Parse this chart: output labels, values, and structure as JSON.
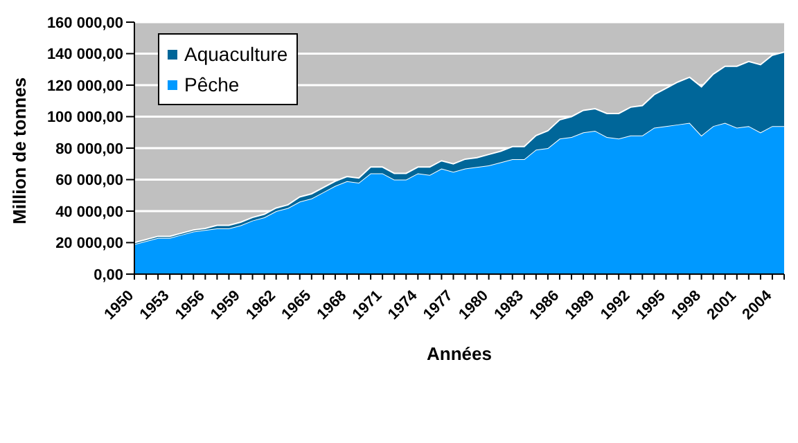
{
  "chart_data": {
    "type": "area",
    "stacked": true,
    "xlabel": "Années",
    "ylabel": "Million de tonnes",
    "categories": [
      "1950",
      null,
      null,
      "1953",
      null,
      null,
      "1956",
      null,
      null,
      "1959",
      null,
      null,
      "1962",
      null,
      null,
      "1965",
      null,
      null,
      "1968",
      null,
      null,
      "1971",
      null,
      null,
      "1974",
      null,
      null,
      "1977",
      null,
      null,
      "1980",
      null,
      null,
      "1983",
      null,
      null,
      "1986",
      null,
      null,
      "1989",
      null,
      null,
      "1992",
      null,
      null,
      "1995",
      null,
      null,
      "1998",
      null,
      null,
      "2001",
      null,
      null,
      "2004",
      null
    ],
    "series": [
      {
        "name": "Pêche",
        "color": "#0099ff",
        "values": [
          19000,
          21000,
          23000,
          23000,
          25000,
          27000,
          28000,
          29000,
          29000,
          31000,
          34000,
          36000,
          40000,
          42000,
          46000,
          48000,
          52000,
          56000,
          59000,
          58000,
          64000,
          64000,
          60000,
          60000,
          64000,
          63000,
          67000,
          65000,
          67000,
          68000,
          69000,
          71000,
          73000,
          73000,
          79000,
          80000,
          86000,
          87000,
          90000,
          91000,
          87000,
          86000,
          88000,
          88000,
          93000,
          94000,
          95000,
          96000,
          88000,
          94000,
          96000,
          93000,
          94000,
          90000,
          94000,
          94000
        ]
      },
      {
        "name": "Aquaculture",
        "color": "#006699",
        "values": [
          1000,
          1000,
          1000,
          1000,
          1000,
          1000,
          1000,
          2000,
          2000,
          2000,
          2000,
          2000,
          2000,
          2000,
          3000,
          3000,
          3000,
          3000,
          3000,
          3000,
          4000,
          4000,
          4000,
          4000,
          4000,
          5000,
          5000,
          5000,
          6000,
          6000,
          7000,
          7000,
          8000,
          8000,
          9000,
          11000,
          12000,
          13000,
          14000,
          14000,
          15000,
          16000,
          18000,
          19000,
          21000,
          24000,
          27000,
          29000,
          31000,
          33000,
          36000,
          39000,
          41000,
          43000,
          45000,
          47000
        ]
      }
    ],
    "ylim": [
      0,
      160000
    ],
    "yticks": [
      {
        "value": 0,
        "label": "0,00"
      },
      {
        "value": 20000,
        "label": "20 000,00"
      },
      {
        "value": 40000,
        "label": "40 000,00"
      },
      {
        "value": 60000,
        "label": "60 000,00"
      },
      {
        "value": 80000,
        "label": "80 000,00"
      },
      {
        "value": 100000,
        "label": "100 000,00"
      },
      {
        "value": 120000,
        "label": "120 000,00"
      },
      {
        "value": 140000,
        "label": "140 000,00"
      },
      {
        "value": 160000,
        "label": "160 000,00"
      }
    ],
    "grid": "y",
    "legend": "top left"
  }
}
